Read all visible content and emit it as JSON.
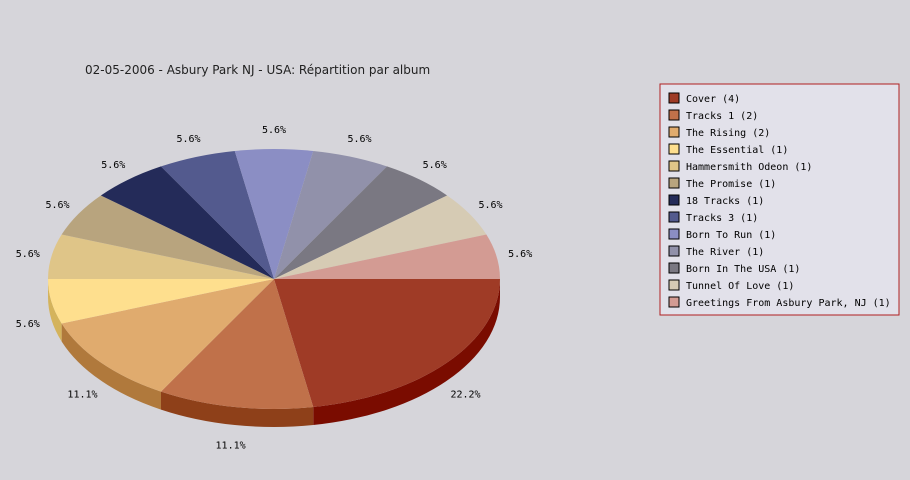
{
  "chart_data": {
    "type": "pie",
    "title": "02-05-2006 - Asbury Park NJ - USA:  Répartition par album",
    "legend_position": "right",
    "slices": [
      {
        "label": "Cover (4)",
        "value": 4,
        "percent_label": "22.2%",
        "color": "#9f3b26",
        "side_color": "#7a0c00"
      },
      {
        "label": "Tracks 1 (2)",
        "value": 2,
        "percent_label": "11.1%",
        "color": "#c0714a",
        "side_color": "#8e4019"
      },
      {
        "label": "The Rising (2)",
        "value": 2,
        "percent_label": "11.1%",
        "color": "#e0ab6e",
        "side_color": "#b0793c"
      },
      {
        "label": "The Essential (1)",
        "value": 1,
        "percent_label": "5.6%",
        "color": "#fedf8e",
        "side_color": "#d4b35c"
      },
      {
        "label": "Hammersmith Odeon  (1)",
        "value": 1,
        "percent_label": "5.6%",
        "color": "#dfc588",
        "side_color": "#b09550"
      },
      {
        "label": "The Promise (1)",
        "value": 1,
        "percent_label": "5.6%",
        "color": "#b8a47e",
        "side_color": "#8a7650"
      },
      {
        "label": "18 Tracks (1)",
        "value": 1,
        "percent_label": "5.6%",
        "color": "#242b59",
        "side_color": "#141830"
      },
      {
        "label": "Tracks 3 (1)",
        "value": 1,
        "percent_label": "5.6%",
        "color": "#535a8e",
        "side_color": "#353a60"
      },
      {
        "label": "Born To Run (1)",
        "value": 1,
        "percent_label": "5.6%",
        "color": "#8b8ec4",
        "side_color": "#5d608f"
      },
      {
        "label": "The River (1)",
        "value": 1,
        "percent_label": "5.6%",
        "color": "#9191aa",
        "side_color": "#62627a"
      },
      {
        "label": "Born In The USA (1)",
        "value": 1,
        "percent_label": "5.6%",
        "color": "#7a7882",
        "side_color": "#4e4c55"
      },
      {
        "label": "Tunnel Of Love (1)",
        "value": 1,
        "percent_label": "5.6%",
        "color": "#d6cbb4",
        "side_color": "#a8a08a"
      },
      {
        "label": "Greetings From Asbury Park, NJ (1)",
        "value": 1,
        "percent_label": "5.6%",
        "color": "#d39b93",
        "side_color": "#a06e67"
      }
    ]
  }
}
